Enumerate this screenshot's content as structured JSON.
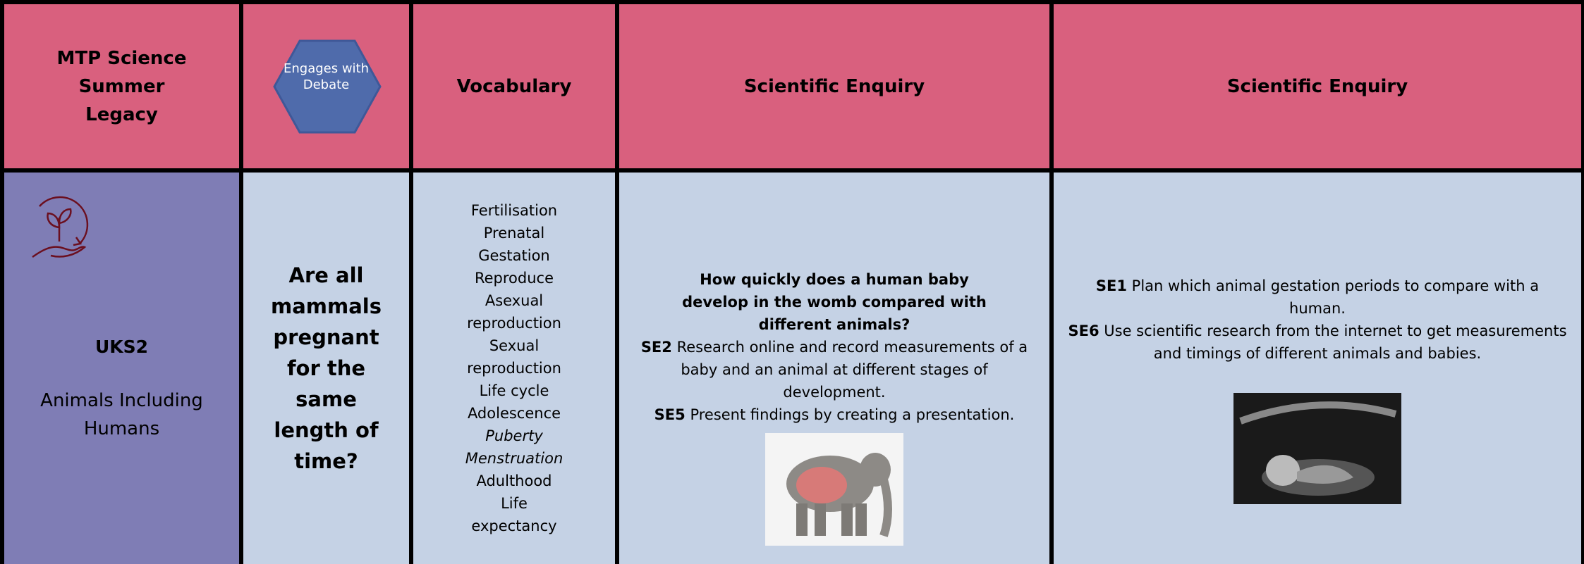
{
  "header": {
    "title_lines": [
      "MTP Science",
      "Summer",
      "Legacy"
    ],
    "badge": "Engages with Debate",
    "vocabulary": "Vocabulary",
    "enquiry_1": "Scientific Enquiry",
    "enquiry_2": "Scientific Enquiry"
  },
  "body": {
    "stage": "UKS2",
    "topic": "Animals Including Humans",
    "question": "Are all mammals pregnant for the same length of time?",
    "vocabulary": [
      "Fertilisation",
      "Prenatal",
      "Gestation",
      "Reproduce",
      "Asexual reproduction",
      "Sexual reproduction",
      "Life cycle",
      "Adolescence",
      "Puberty",
      "Menstruation",
      "Adulthood",
      "Life expectancy"
    ],
    "enquiry_1": {
      "question": "How quickly does a human baby develop in the womb compared with different animals?",
      "items": [
        {
          "code": "SE2",
          "text": "Research online and record measurements of a baby and an animal at different stages of development."
        },
        {
          "code": "SE5",
          "text": "Present findings by creating a presentation."
        }
      ]
    },
    "enquiry_2": {
      "items": [
        {
          "code": "SE1",
          "text": "Plan which animal gestation periods to compare with a human."
        },
        {
          "code": "SE6",
          "text": "Use scientific research from the internet to get measurements and timings of different animals and babies."
        }
      ]
    }
  }
}
